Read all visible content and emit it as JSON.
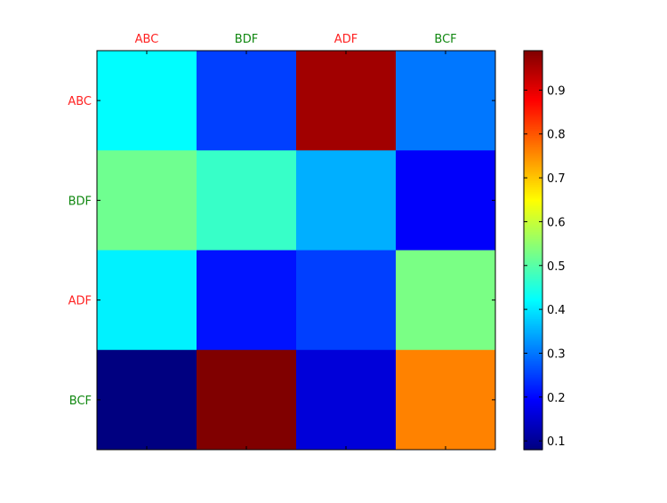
{
  "chart_data": {
    "type": "heatmap",
    "x_categories": [
      "ABC",
      "BDF",
      "ADF",
      "BCF"
    ],
    "y_categories": [
      "ABC",
      "BDF",
      "ADF",
      "BCF"
    ],
    "x_label_colors": [
      "#ff2222",
      "#118811",
      "#ff2222",
      "#118811"
    ],
    "y_label_colors": [
      "#ff2222",
      "#118811",
      "#ff2222",
      "#118811"
    ],
    "values": [
      [
        0.42,
        0.25,
        0.96,
        0.3
      ],
      [
        0.52,
        0.47,
        0.35,
        0.19
      ],
      [
        0.41,
        0.21,
        0.25,
        0.53
      ],
      [
        0.08,
        0.99,
        0.16,
        0.76
      ]
    ],
    "colormap": "jet",
    "colorbar": {
      "min": 0.08,
      "max": 0.99,
      "ticks": [
        0.1,
        0.2,
        0.3,
        0.4,
        0.5,
        0.6,
        0.7,
        0.8,
        0.9
      ],
      "tick_labels": [
        "0.1",
        "0.2",
        "0.3",
        "0.4",
        "0.5",
        "0.6",
        "0.7",
        "0.8",
        "0.9"
      ]
    },
    "title": "",
    "xlabel": "",
    "ylabel": "",
    "x_tick_position": "top",
    "grid": false
  }
}
